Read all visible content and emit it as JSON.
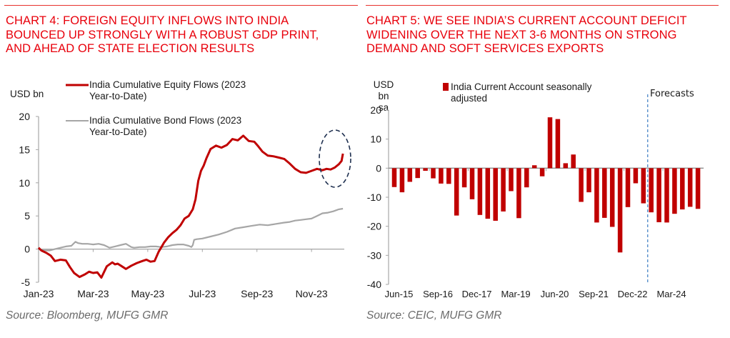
{
  "colors": {
    "title": "#e8000b",
    "rule": "#e8322e",
    "equity": "#c00000",
    "bond": "#a6a6a6",
    "bar": "#c00000",
    "axis": "#a6a6a6",
    "ellipse": "#1f3050",
    "forecast_line": "#4a86c8",
    "source": "#6b6b6b"
  },
  "chart_data": [
    {
      "type": "line",
      "title": "CHART 4: FOREIGN EQUITY INFLOWS INTO INDIA BOUNCED UP STRONGLY WITH A ROBUST GDP PRINT, AND AHEAD OF STATE ELECTION RESULTS",
      "title_lines": [
        "CHART 4: FOREIGN EQUITY INFLOWS INTO INDIA",
        "BOUNCED UP STRONGLY WITH A ROBUST GDP PRINT,",
        "AND AHEAD OF STATE ELECTION RESULTS"
      ],
      "ylabel": "USD bn",
      "xlabel": "",
      "ylim": [
        -5,
        20
      ],
      "yticks": [
        20,
        15,
        10,
        5,
        0,
        -5
      ],
      "xticks": [
        "Jan-23",
        "Mar-23",
        "May-23",
        "Jul-23",
        "Sep-23",
        "Nov-23"
      ],
      "xrange_months": [
        0,
        11.2
      ],
      "legend": {
        "placement": "top-center",
        "entries": [
          "India Cumulative Equity Flows (2023 Year-to-Date)",
          "India Cumulative Bond Flows (2023 Year-to-Date)"
        ],
        "entry_lines": [
          [
            "India Cumulative Equity Flows (2023",
            "Year-to-Date)"
          ],
          [
            "India Cumulative Bond Flows (2023",
            "Year-to-Date)"
          ]
        ]
      },
      "annotation": "dashed ellipse highlighting late-Nov/early-Dec 2023 equity rebound",
      "grid": false,
      "series": [
        {
          "name": "India Cumulative Equity Flows (2023 Year-to-Date)",
          "x": [
            0,
            0.1,
            0.3,
            0.45,
            0.6,
            0.8,
            1.0,
            1.15,
            1.3,
            1.5,
            1.7,
            1.85,
            2.0,
            2.15,
            2.3,
            2.5,
            2.7,
            2.8,
            2.9,
            3.05,
            3.2,
            3.4,
            3.6,
            3.8,
            3.95,
            4.1,
            4.25,
            4.4,
            4.5,
            4.6,
            4.75,
            4.9,
            5.05,
            5.2,
            5.35,
            5.5,
            5.65,
            5.75,
            5.85,
            5.95,
            6.05,
            6.15,
            6.3,
            6.5,
            6.7,
            6.9,
            7.1,
            7.3,
            7.5,
            7.7,
            7.9,
            8.05,
            8.2,
            8.4,
            8.6,
            8.8,
            9.0,
            9.2,
            9.4,
            9.6,
            9.8,
            10.0,
            10.2,
            10.4,
            10.55,
            10.7,
            10.85,
            11.0,
            11.1,
            11.15
          ],
          "values": [
            0.2,
            -0.2,
            -0.6,
            -1.0,
            -1.8,
            -1.6,
            -1.7,
            -2.7,
            -3.6,
            -4.2,
            -3.8,
            -3.4,
            -3.6,
            -3.5,
            -4.3,
            -2.6,
            -2.0,
            -2.3,
            -2.2,
            -2.6,
            -3.0,
            -2.5,
            -2.1,
            -1.8,
            -1.6,
            -1.9,
            -1.8,
            -0.4,
            0.3,
            1.0,
            1.8,
            2.4,
            2.9,
            3.6,
            4.6,
            5.0,
            6.0,
            7.5,
            10.3,
            11.8,
            12.6,
            13.7,
            15.1,
            15.6,
            15.3,
            15.7,
            16.6,
            16.4,
            17.1,
            16.3,
            16.2,
            15.5,
            14.7,
            14.1,
            14.0,
            13.8,
            13.6,
            12.9,
            12.1,
            11.6,
            11.5,
            11.8,
            12.1,
            11.9,
            12.1,
            12.0,
            12.3,
            12.8,
            13.3,
            14.4
          ]
        },
        {
          "name": "India Cumulative Bond Flows (2023 Year-to-Date)",
          "x": [
            0,
            0.2,
            0.4,
            0.6,
            0.8,
            1.0,
            1.2,
            1.35,
            1.45,
            1.6,
            1.8,
            2.0,
            2.2,
            2.4,
            2.6,
            2.8,
            3.0,
            3.2,
            3.4,
            3.5,
            3.7,
            3.9,
            4.1,
            4.3,
            4.5,
            4.7,
            4.9,
            5.1,
            5.3,
            5.5,
            5.6,
            5.65,
            5.7,
            5.8,
            6.0,
            6.3,
            6.6,
            6.9,
            7.2,
            7.5,
            7.8,
            8.1,
            8.4,
            8.7,
            9.0,
            9.2,
            9.4,
            9.6,
            9.8,
            10.0,
            10.2,
            10.4,
            10.6,
            10.8,
            11.0,
            11.15
          ],
          "values": [
            0.0,
            -0.2,
            -0.2,
            0.0,
            0.2,
            0.4,
            0.5,
            1.1,
            0.9,
            0.8,
            0.8,
            0.7,
            0.8,
            0.6,
            0.2,
            0.4,
            0.6,
            0.8,
            0.3,
            0.2,
            0.3,
            0.3,
            0.4,
            0.4,
            0.3,
            0.4,
            0.6,
            0.7,
            0.7,
            0.5,
            0.3,
            0.6,
            1.4,
            1.5,
            1.6,
            1.9,
            2.2,
            2.6,
            3.1,
            3.3,
            3.5,
            3.7,
            3.6,
            3.8,
            4.0,
            4.1,
            4.3,
            4.4,
            4.5,
            4.6,
            5.0,
            5.4,
            5.5,
            5.7,
            6.0,
            6.1
          ]
        }
      ],
      "source": "Source: Bloomberg, MUFG GMR"
    },
    {
      "type": "bar",
      "title": "CHART 5: WE SEE INDIA'S CURRENT ACCOUNT DEFICIT WIDENING OVER THE NEXT 3-6 MONTHS ON STRONG DEMAND AND SOFT SERVICES EXPORTS",
      "title_lines": [
        "CHART 5: WE SEE INDIA’S CURRENT ACCOUNT DEFICIT",
        "WIDENING OVER THE NEXT 3-6 MONTHS ON STRONG",
        "DEMAND AND SOFT SERVICES EXPORTS"
      ],
      "ylabel_lines": [
        "USD bn",
        "sa"
      ],
      "xlabel": "",
      "ylim": [
        -40,
        20
      ],
      "yticks": [
        20,
        10,
        0,
        -10,
        -20,
        -30,
        -40
      ],
      "xtick_labels": [
        "Jun-15",
        "Sep-16",
        "Dec-17",
        "Mar-19",
        "Jun-20",
        "Sep-21",
        "Dec-22",
        "Mar-24"
      ],
      "xtick_every": 5,
      "legend": {
        "placement": "top-center",
        "entries": [
          "India Current Account seasonally adjusted"
        ],
        "entry_lines": [
          "India Current Account seasonally",
          "adjusted"
        ]
      },
      "annotation": {
        "text": "Forecasts",
        "start_index": 33
      },
      "grid": false,
      "categories": [
        "Jun-15",
        "Sep-15",
        "Dec-15",
        "Mar-16",
        "Jun-16",
        "Sep-16",
        "Dec-16",
        "Mar-17",
        "Jun-17",
        "Sep-17",
        "Dec-17",
        "Mar-18",
        "Jun-18",
        "Sep-18",
        "Dec-18",
        "Mar-19",
        "Jun-19",
        "Sep-19",
        "Dec-19",
        "Mar-20",
        "Jun-20",
        "Sep-20",
        "Dec-20",
        "Mar-21",
        "Jun-21",
        "Sep-21",
        "Dec-21",
        "Mar-22",
        "Jun-22",
        "Sep-22",
        "Dec-22",
        "Mar-23",
        "Jun-23",
        "Sep-23",
        "Dec-23",
        "Mar-24",
        "Jun-24",
        "Sep-24",
        "Dec-24",
        "Mar-25"
      ],
      "values": [
        -6.5,
        -8.3,
        -4.7,
        -3.4,
        -0.9,
        -3.5,
        -5.3,
        -5.4,
        -16.3,
        -6.6,
        -10.7,
        -16.1,
        -17.4,
        -18.1,
        -14.9,
        -7.9,
        -17.2,
        -6.6,
        1.0,
        -2.8,
        17.5,
        16.9,
        1.7,
        4.7,
        -11.6,
        -8.3,
        -18.7,
        -17.1,
        -20.2,
        -29.0,
        -13.4,
        -5.2,
        -12.1,
        -15.2,
        -18.6,
        -18.7,
        -15.7,
        -14.2,
        -13.3,
        -14.0
      ],
      "source": "Source: CEIC, MUFG GMR"
    }
  ]
}
